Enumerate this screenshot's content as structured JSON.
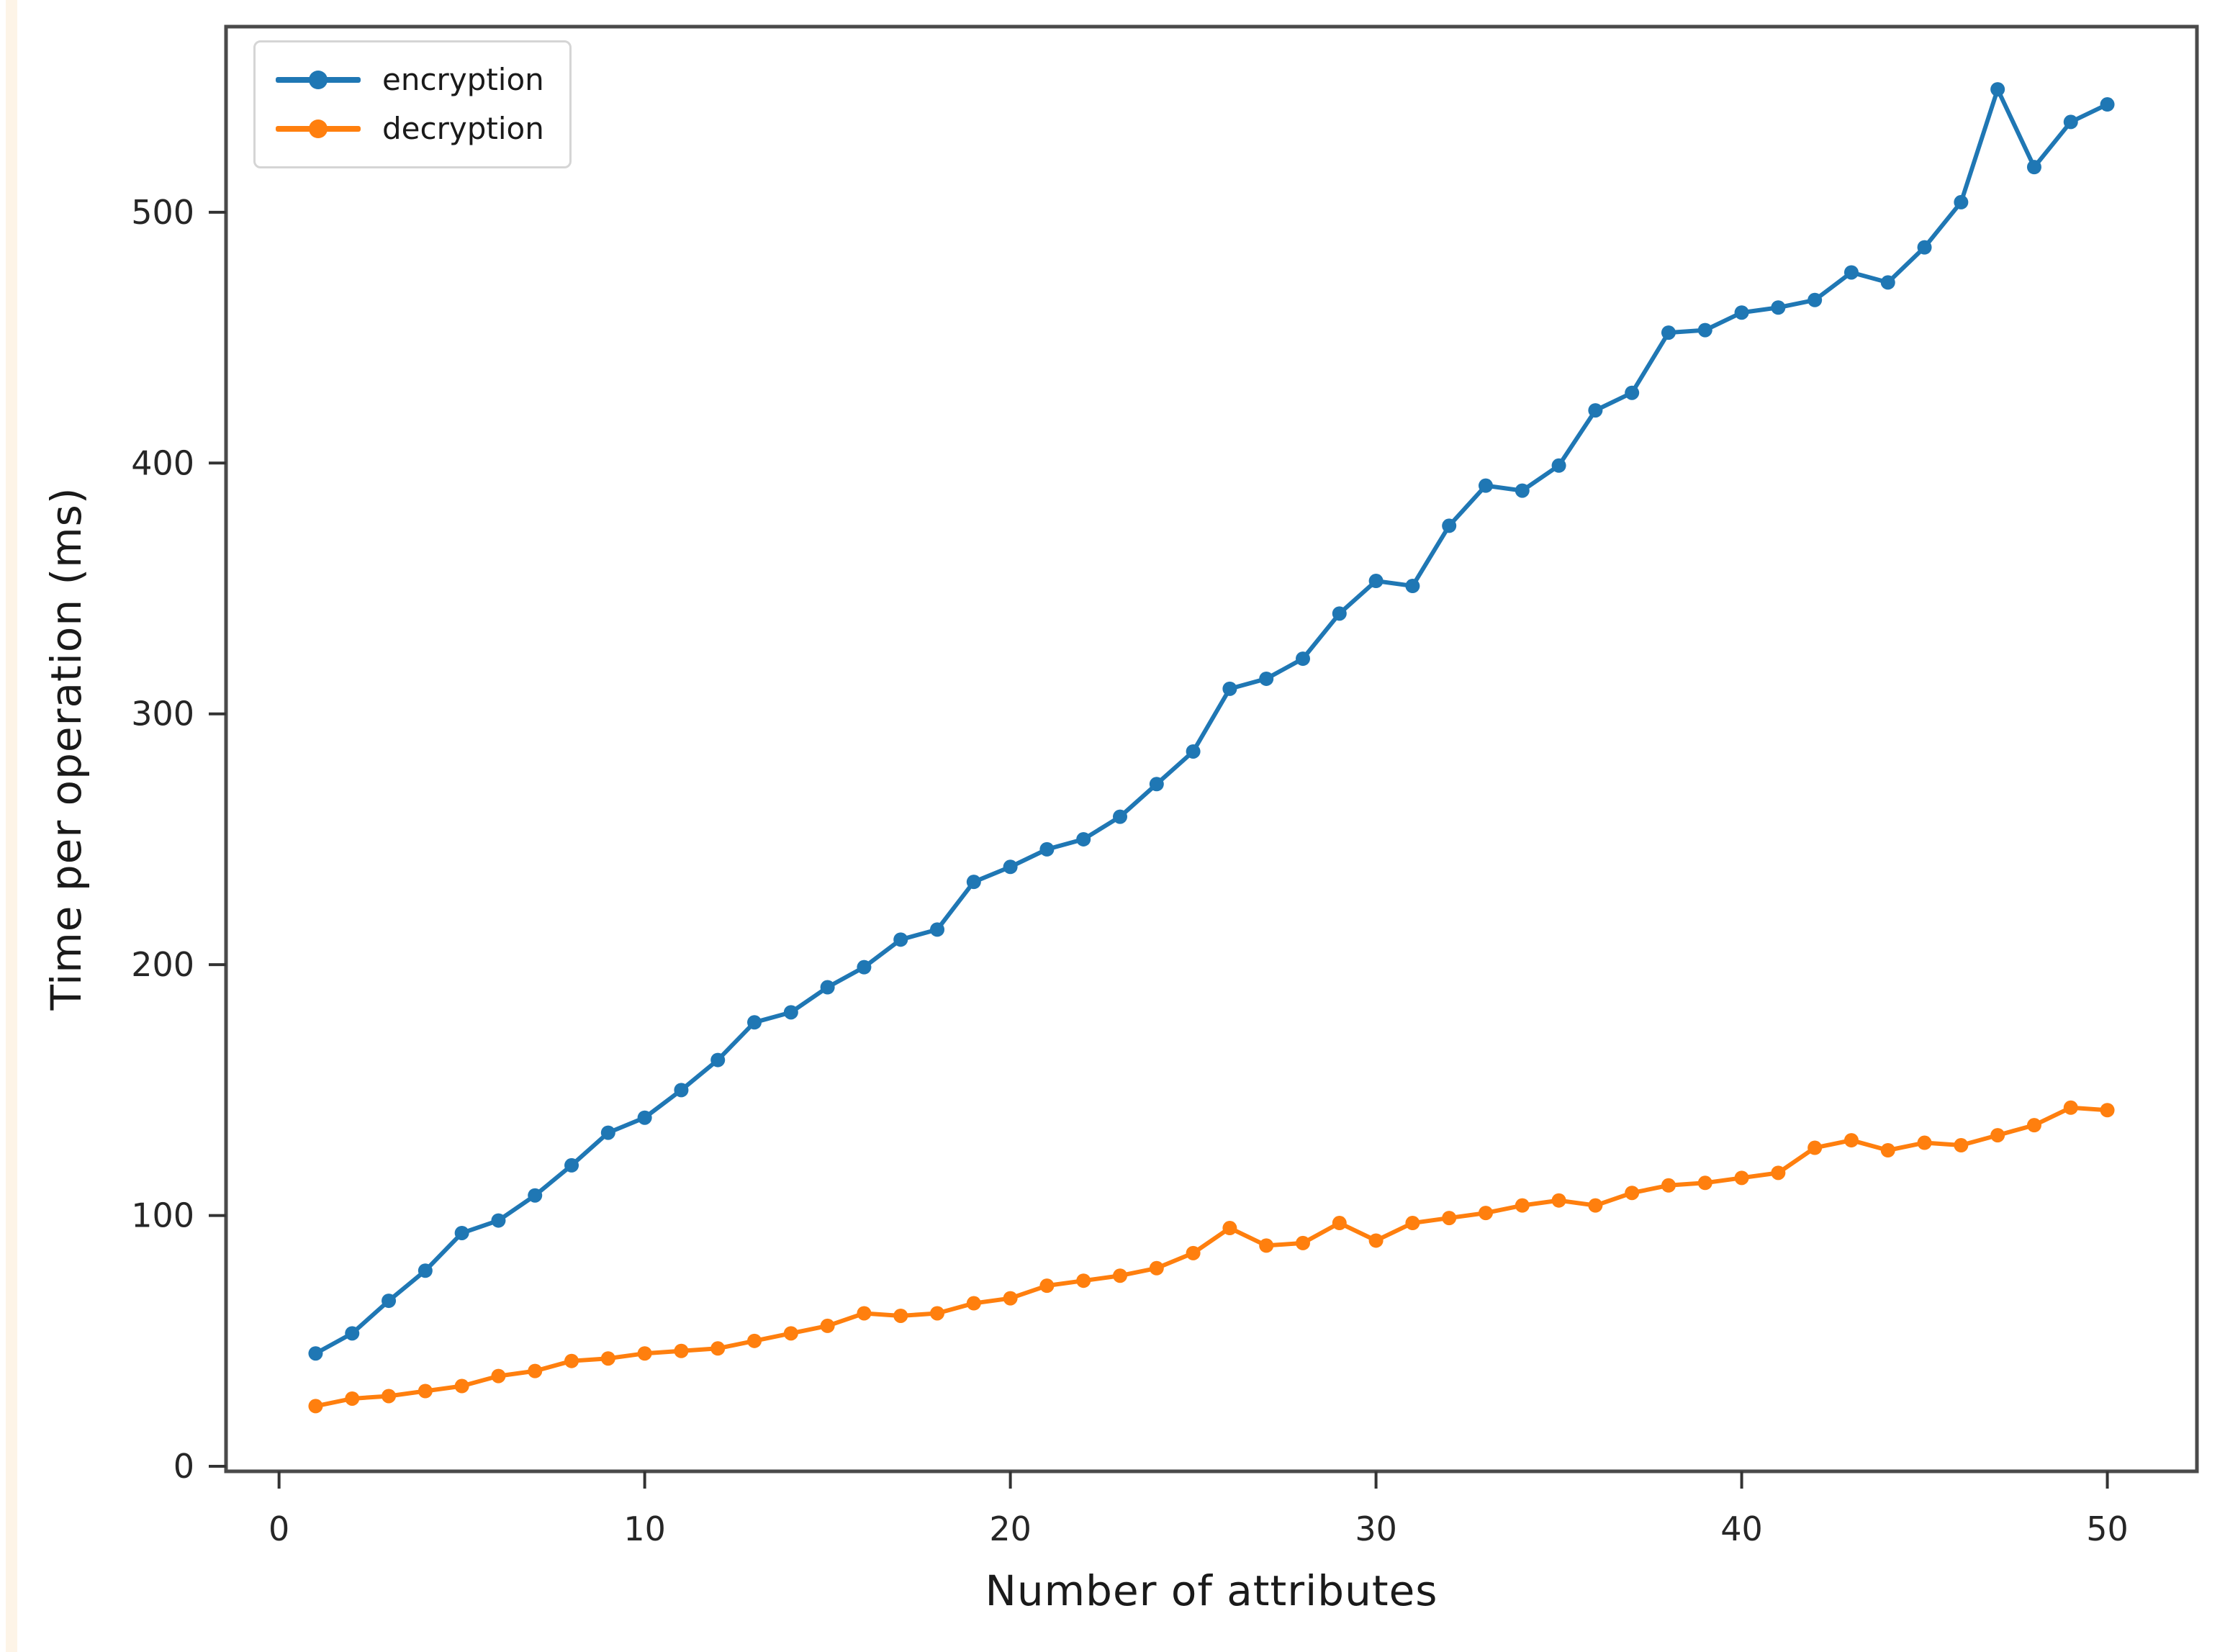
{
  "figure": {
    "background_color": "#ffffff",
    "page_edge_tint": "#fdf4e7",
    "spine_color": "#4a4a4a",
    "tick_color": "#333333",
    "tick_label_color": "#262626"
  },
  "legend": {
    "position": "upper-left",
    "entries": [
      {
        "label": "encryption",
        "color": "#1f77b4"
      },
      {
        "label": "decryption",
        "color": "#ff7f0e"
      }
    ]
  },
  "chart_data": {
    "type": "line",
    "title": "",
    "xlabel": "Number of attributes",
    "ylabel": "Time per operation (ms)",
    "xticks": [
      0,
      10,
      20,
      30,
      40,
      50
    ],
    "yticks": [
      0,
      100,
      200,
      300,
      400,
      500
    ],
    "xlim": [
      -1.45,
      52.45
    ],
    "ylim": [
      -2,
      574
    ],
    "grid": false,
    "marker": "point",
    "x": [
      1,
      2,
      3,
      4,
      5,
      6,
      7,
      8,
      9,
      10,
      11,
      12,
      13,
      14,
      15,
      16,
      17,
      18,
      19,
      20,
      21,
      22,
      23,
      24,
      25,
      26,
      27,
      28,
      29,
      30,
      31,
      32,
      33,
      34,
      35,
      36,
      37,
      38,
      39,
      40,
      41,
      42,
      43,
      44,
      45,
      46,
      47,
      48,
      49,
      50
    ],
    "series": [
      {
        "name": "encryption",
        "color": "#1f77b4",
        "values": [
          45,
          53,
          66,
          78,
          93,
          98,
          108,
          120,
          133,
          139,
          150,
          162,
          177,
          181,
          191,
          199,
          210,
          214,
          233,
          239,
          246,
          250,
          259,
          272,
          285,
          310,
          314,
          322,
          340,
          353,
          351,
          375,
          391,
          389,
          399,
          421,
          428,
          452,
          453,
          460,
          462,
          465,
          476,
          472,
          486,
          504,
          549,
          518,
          536,
          543
        ]
      },
      {
        "name": "decryption",
        "color": "#ff7f0e",
        "values": [
          24,
          27,
          28,
          30,
          32,
          36,
          38,
          42,
          43,
          45,
          46,
          47,
          50,
          53,
          56,
          61,
          60,
          61,
          65,
          67,
          72,
          74,
          76,
          79,
          85,
          95,
          88,
          89,
          97,
          90,
          97,
          99,
          101,
          104,
          106,
          104,
          109,
          112,
          113,
          115,
          117,
          127,
          130,
          126,
          129,
          128,
          132,
          136,
          143,
          142
        ]
      }
    ]
  }
}
